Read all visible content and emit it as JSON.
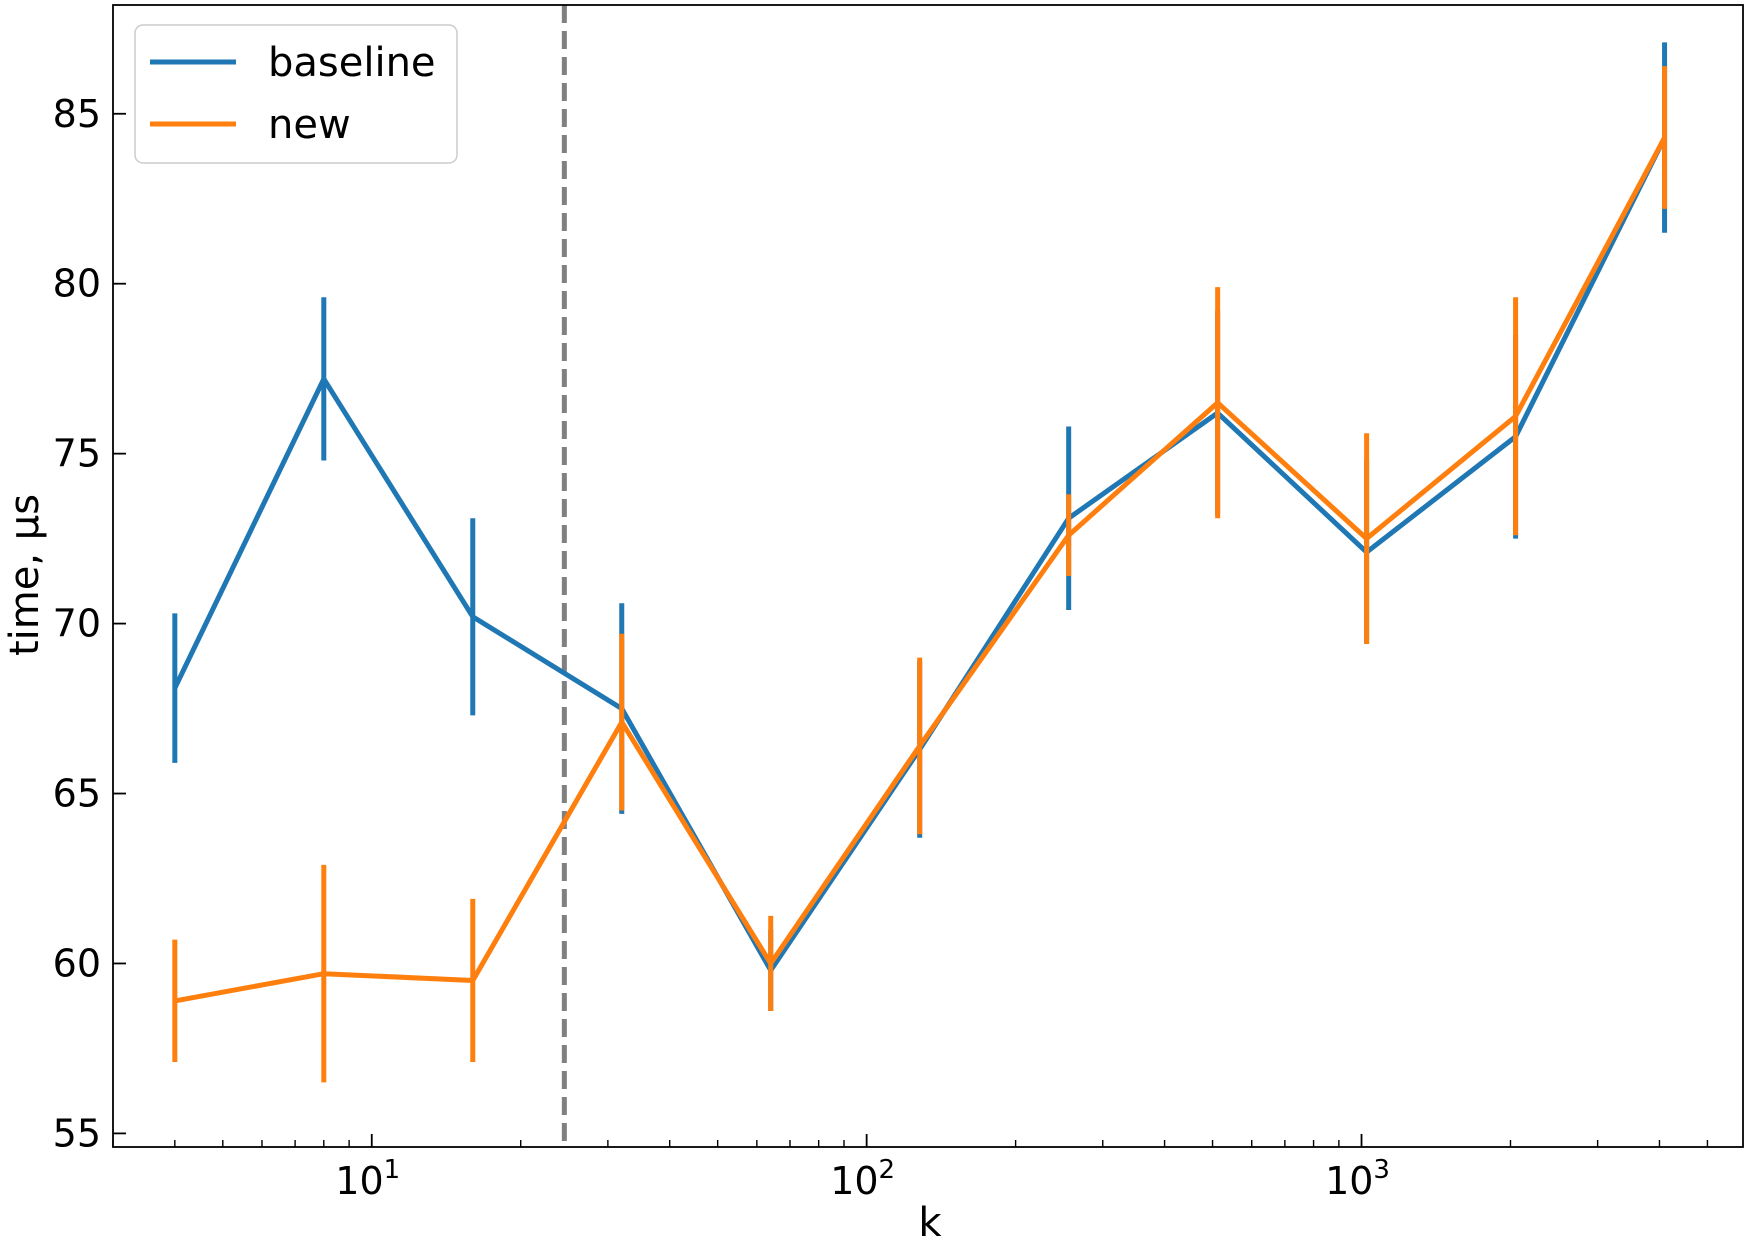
{
  "chart_data": {
    "type": "line",
    "xlabel": "k",
    "ylabel": "time, µs",
    "xscale": "log",
    "xlim": [
      3.0,
      5900
    ],
    "ylim": [
      54.6,
      88.2
    ],
    "yticks": [
      55,
      60,
      65,
      70,
      75,
      80,
      85
    ],
    "xticks": [
      {
        "value": 10,
        "base": "10",
        "exp": "1"
      },
      {
        "value": 100,
        "base": "10",
        "exp": "2"
      },
      {
        "value": 1000,
        "base": "10",
        "exp": "3"
      }
    ],
    "grid": false,
    "legend_position": "top-left",
    "reference_line": {
      "x": 24.5,
      "color": "#808080",
      "style": "dashed"
    },
    "x": [
      4,
      8,
      16,
      32,
      64,
      128,
      256,
      512,
      1024,
      2048,
      4096
    ],
    "series": [
      {
        "name": "baseline",
        "color": "#1f77b4",
        "values": [
          68.1,
          77.2,
          70.2,
          67.5,
          59.8,
          66.3,
          73.1,
          76.2,
          72.1,
          75.5,
          84.3
        ],
        "errors": [
          2.2,
          2.4,
          2.9,
          3.1,
          1.2,
          2.6,
          2.7,
          3.0,
          2.7,
          3.0,
          2.8
        ]
      },
      {
        "name": "new",
        "color": "#ff7f0e",
        "values": [
          58.9,
          59.7,
          59.5,
          67.1,
          60.0,
          66.4,
          72.6,
          76.5,
          72.5,
          76.1,
          84.3
        ],
        "errors": [
          1.8,
          3.2,
          2.4,
          2.6,
          1.4,
          2.6,
          1.2,
          3.4,
          3.1,
          3.5,
          2.1
        ]
      }
    ]
  }
}
